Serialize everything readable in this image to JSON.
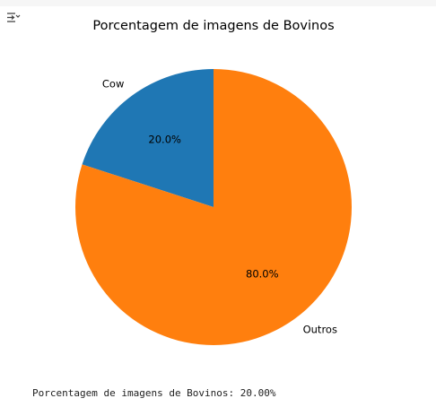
{
  "toolbar": {
    "toggle_icon": "output-toggle-icon"
  },
  "chart_data": {
    "type": "pie",
    "title": "Porcentagem de imagens de Bovinos",
    "labels": [
      "Cow",
      "Outros"
    ],
    "values": [
      20.0,
      80.0
    ],
    "autopct": [
      "20.0%",
      "80.0%"
    ],
    "colors": [
      "#1f77b4",
      "#ff7f0e"
    ],
    "start_angle_deg": 90,
    "direction": "counterclockwise"
  },
  "output": {
    "text": "Porcentagem de imagens de Bovinos: 20.00%"
  }
}
